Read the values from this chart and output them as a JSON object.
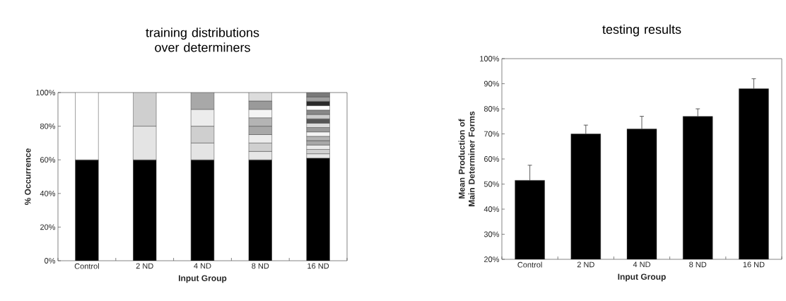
{
  "chart_data": [
    {
      "type": "bar",
      "stacked": true,
      "title": "training distributions over determiners",
      "xlabel": "Input Group",
      "ylabel": "% Occurrence",
      "categories": [
        "Control",
        "2 ND",
        "4 ND",
        "8 ND",
        "16 ND"
      ],
      "ylim": [
        0,
        100
      ],
      "yticks": [
        {
          "value": 0,
          "label": "0%"
        },
        {
          "value": 20,
          "label": "20%"
        },
        {
          "value": 40,
          "label": "40%"
        },
        {
          "value": 60,
          "label": "60%"
        },
        {
          "value": 80,
          "label": "80%"
        },
        {
          "value": 100,
          "label": "100%"
        }
      ],
      "series": [
        {
          "color": "#000000",
          "values": [
            60,
            60,
            60,
            60,
            61
          ]
        },
        {
          "colors": [
            "#ffffff",
            "#e4e4e4",
            "#e4e4e4",
            "#e6e6e6",
            "#e6e6e6"
          ],
          "values": [
            40,
            20,
            10,
            5,
            2.6
          ]
        },
        {
          "color": "#cfcfcf",
          "values": [
            null,
            20,
            10,
            5,
            2.6
          ]
        },
        {
          "color": "#ececec",
          "values": [
            null,
            null,
            10,
            5,
            2.6
          ]
        },
        {
          "color": "#a8a8a8",
          "values": [
            null,
            null,
            10,
            5,
            2.6
          ]
        },
        {
          "color": "#b4b4b4",
          "values": [
            null,
            null,
            null,
            5,
            2.6
          ]
        },
        {
          "color": "#f4f4f4",
          "values": [
            null,
            null,
            null,
            5,
            2.6
          ]
        },
        {
          "color": "#9a9a9a",
          "values": [
            null,
            null,
            null,
            5,
            2.6
          ]
        },
        {
          "color": "#dcdcdc",
          "values": [
            null,
            null,
            null,
            5,
            2.6
          ]
        },
        {
          "color": "#555555",
          "values": [
            null,
            null,
            null,
            null,
            2.6
          ]
        },
        {
          "color": "#cccccc",
          "values": [
            null,
            null,
            null,
            null,
            2.6
          ]
        },
        {
          "color": "#888888",
          "values": [
            null,
            null,
            null,
            null,
            2.6
          ]
        },
        {
          "color": "#ffffff",
          "values": [
            null,
            null,
            null,
            null,
            2.6
          ]
        },
        {
          "color": "#2a2a2a",
          "values": [
            null,
            null,
            null,
            null,
            2.6
          ]
        },
        {
          "color": "#a0a0a0",
          "values": [
            null,
            null,
            null,
            null,
            2.6
          ]
        },
        {
          "color": "#7a7a7a",
          "values": [
            null,
            null,
            null,
            null,
            2.6
          ]
        }
      ]
    },
    {
      "type": "bar",
      "title": "testing results",
      "xlabel": "Input Group",
      "ylabel": "Mean Production of Main Determiner Forms",
      "categories": [
        "Control",
        "2 ND",
        "4 ND",
        "8 ND",
        "16 ND"
      ],
      "values": [
        51.5,
        70,
        72,
        77,
        88
      ],
      "color": "#000000",
      "errors": [
        [
          51.5,
          57.5
        ],
        [
          70,
          73.5
        ],
        [
          72,
          77
        ],
        [
          77,
          80
        ],
        [
          88,
          92
        ]
      ],
      "ylim": [
        20,
        100
      ],
      "yticks": [
        {
          "value": 20,
          "label": "20%"
        },
        {
          "value": 30,
          "label": "30%"
        },
        {
          "value": 40,
          "label": "40%"
        },
        {
          "value": 50,
          "label": "50%"
        },
        {
          "value": 60,
          "label": "60%"
        },
        {
          "value": 70,
          "label": "70%"
        },
        {
          "value": 80,
          "label": "80%"
        },
        {
          "value": 90,
          "label": "90%"
        },
        {
          "value": 100,
          "label": "100%"
        }
      ]
    }
  ]
}
